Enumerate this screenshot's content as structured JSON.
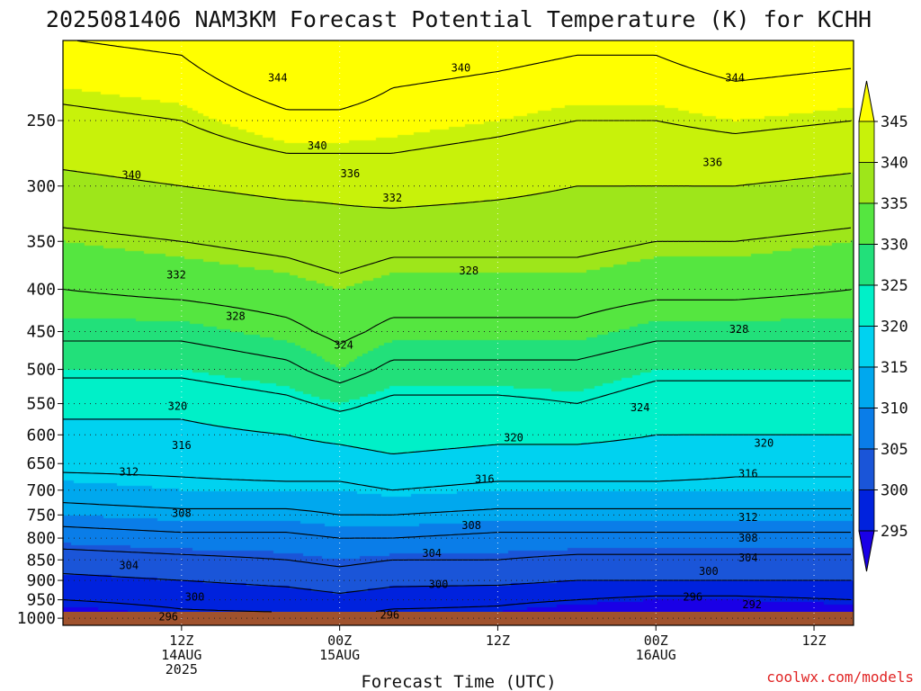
{
  "chart_data": {
    "type": "heatmap",
    "title": "2025081406 NAM3KM Forecast Potential Temperature (K) for KCHH",
    "xlabel": "Forecast Time (UTC)",
    "credit": "coolwx.com/models",
    "y_axis": {
      "log_scale": true,
      "inverted": true,
      "range_hpa": [
        200,
        1020
      ],
      "ticks": [
        250,
        300,
        350,
        400,
        450,
        500,
        550,
        600,
        650,
        700,
        750,
        800,
        850,
        900,
        950,
        1000
      ],
      "tick_labels": [
        "250",
        "300",
        "350",
        "400",
        "450",
        "500",
        "550",
        "600",
        "650",
        "700",
        "750",
        "800",
        "850",
        "900",
        "950",
        "1000"
      ]
    },
    "x_axis": {
      "range_hours": [
        -3,
        57
      ],
      "ticks": [
        {
          "hour": 6,
          "lines": [
            "12Z",
            "14AUG",
            "2025"
          ]
        },
        {
          "hour": 18,
          "lines": [
            "00Z",
            "15AUG"
          ]
        },
        {
          "hour": 30,
          "lines": [
            "12Z"
          ]
        },
        {
          "hour": 42,
          "lines": [
            "00Z",
            "16AUG"
          ]
        },
        {
          "hour": 54,
          "lines": [
            "12Z"
          ]
        }
      ]
    },
    "grid": true,
    "colorbar": {
      "levels": [
        295,
        300,
        305,
        310,
        315,
        320,
        325,
        330,
        335,
        340,
        345
      ],
      "labels": [
        "295",
        "300",
        "305",
        "310",
        "315",
        "320",
        "325",
        "330",
        "335",
        "340",
        "345"
      ],
      "colors": [
        "#1a00e6",
        "#0022dd",
        "#1a55d8",
        "#0a7de8",
        "#00a8ee",
        "#00d2f0",
        "#00f0c8",
        "#22e07a",
        "#55e640",
        "#9ee61a",
        "#c8f20a",
        "#ffff00"
      ],
      "placement": "right"
    },
    "ground_color": "#a0522d",
    "profiles": [
      {
        "hour": -3,
        "theta": [
          293,
          296,
          299,
          302,
          306,
          310,
          314,
          317,
          319,
          321,
          325,
          329,
          332,
          335,
          339,
          343
        ]
      },
      {
        "hour": 6,
        "theta": [
          295,
          297,
          300,
          303,
          307,
          311,
          315,
          317,
          319,
          321,
          325,
          329,
          333,
          336,
          340,
          344
        ]
      },
      {
        "hour": 14,
        "theta": [
          295,
          298,
          301,
          304,
          307,
          311,
          315,
          318,
          320,
          323,
          327,
          331,
          334,
          337,
          341,
          347
        ]
      },
      {
        "hour": 18,
        "theta": [
          296,
          299,
          302,
          305,
          308,
          312,
          315,
          318,
          321,
          325,
          330,
          333,
          335,
          338,
          341,
          347
        ]
      },
      {
        "hour": 22,
        "theta": [
          294,
          298,
          301,
          304,
          308,
          312,
          316,
          319,
          322,
          323,
          327,
          331,
          334,
          337,
          342,
          346
        ]
      },
      {
        "hour": 30,
        "theta": [
          294,
          297,
          301,
          304,
          307,
          311,
          315,
          318,
          321,
          323,
          327,
          331,
          334,
          337,
          341,
          345
        ]
      },
      {
        "hour": 36,
        "theta": [
          292,
          296,
          300,
          303,
          307,
          311,
          315,
          318,
          321,
          324,
          327,
          331,
          334,
          337,
          340,
          344
        ]
      },
      {
        "hour": 42,
        "theta": [
          291,
          295,
          300,
          303,
          307,
          311,
          315,
          318,
          320,
          322,
          325,
          329,
          333,
          336,
          340,
          344
        ]
      },
      {
        "hour": 48,
        "theta": [
          291,
          295,
          300,
          303,
          307,
          311,
          315,
          317,
          320,
          322,
          325,
          329,
          333,
          336,
          340,
          345
        ]
      },
      {
        "hour": 57,
        "theta": [
          292,
          296,
          300,
          303,
          307,
          311,
          315,
          317,
          320,
          322,
          325,
          329,
          332,
          335,
          339,
          344
        ]
      }
    ],
    "contour_labels": [
      {
        "text": "344",
        "hour": 13.3,
        "p": 222
      },
      {
        "text": "340",
        "hour": 27.2,
        "p": 216
      },
      {
        "text": "344",
        "hour": 48.0,
        "p": 222
      },
      {
        "text": "340",
        "hour": 16.3,
        "p": 268
      },
      {
        "text": "340",
        "hour": 2.2,
        "p": 291
      },
      {
        "text": "336",
        "hour": 18.8,
        "p": 290
      },
      {
        "text": "336",
        "hour": 46.3,
        "p": 281
      },
      {
        "text": "332",
        "hour": 22.0,
        "p": 310
      },
      {
        "text": "328",
        "hour": 27.8,
        "p": 380
      },
      {
        "text": "332",
        "hour": 5.6,
        "p": 384
      },
      {
        "text": "328",
        "hour": 10.1,
        "p": 431
      },
      {
        "text": "324",
        "hour": 18.3,
        "p": 467
      },
      {
        "text": "328",
        "hour": 48.3,
        "p": 447
      },
      {
        "text": "324",
        "hour": 40.8,
        "p": 556
      },
      {
        "text": "320",
        "hour": 5.7,
        "p": 554
      },
      {
        "text": "320",
        "hour": 31.2,
        "p": 605
      },
      {
        "text": "320",
        "hour": 50.2,
        "p": 614
      },
      {
        "text": "316",
        "hour": 6.0,
        "p": 618
      },
      {
        "text": "316",
        "hour": 29.0,
        "p": 679
      },
      {
        "text": "316",
        "hour": 49.0,
        "p": 669
      },
      {
        "text": "312",
        "hour": 2.0,
        "p": 665
      },
      {
        "text": "312",
        "hour": 49.0,
        "p": 755
      },
      {
        "text": "308",
        "hour": 6.0,
        "p": 747
      },
      {
        "text": "308",
        "hour": 28.0,
        "p": 772
      },
      {
        "text": "308",
        "hour": 49.0,
        "p": 800
      },
      {
        "text": "304",
        "hour": 2.0,
        "p": 863
      },
      {
        "text": "304",
        "hour": 25.0,
        "p": 835
      },
      {
        "text": "304",
        "hour": 49.0,
        "p": 845
      },
      {
        "text": "300",
        "hour": 7.0,
        "p": 942
      },
      {
        "text": "300",
        "hour": 25.5,
        "p": 910
      },
      {
        "text": "300",
        "hour": 46.0,
        "p": 878
      },
      {
        "text": "296",
        "hour": 44.8,
        "p": 942
      },
      {
        "text": "292",
        "hour": 49.3,
        "p": 963
      },
      {
        "text": "296",
        "hour": 5.0,
        "p": 996
      },
      {
        "text": "296",
        "hour": 21.8,
        "p": 991
      }
    ]
  }
}
